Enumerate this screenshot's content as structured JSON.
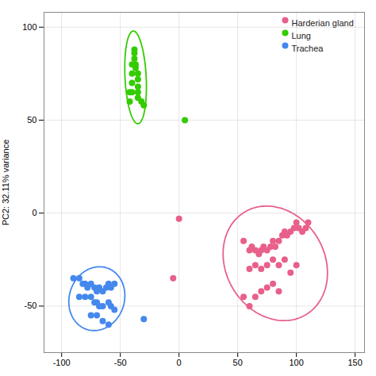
{
  "chart_data": {
    "type": "scatter",
    "ylabel": "PC2: 32.11% variance",
    "xlim": [
      -115,
      158
    ],
    "ylim": [
      -75,
      108
    ],
    "xticks": [
      -100,
      -50,
      0,
      50,
      100,
      150
    ],
    "yticks": [
      -50,
      0,
      50,
      100
    ],
    "grid": true,
    "legend": "upper right",
    "series": [
      {
        "name": "Harderian gland",
        "color": "#e8608a",
        "x": [
          55,
          60,
          62,
          65,
          68,
          70,
          72,
          75,
          78,
          80,
          82,
          85,
          88,
          90,
          92,
          95,
          98,
          100,
          102,
          105,
          108,
          110,
          60,
          65,
          70,
          75,
          80,
          85,
          90,
          95,
          100,
          55,
          60,
          65,
          70,
          75,
          80,
          85,
          0,
          -5
        ],
        "values": [
          -15,
          -20,
          -18,
          -20,
          -22,
          -20,
          -18,
          -20,
          -18,
          -15,
          -18,
          -15,
          -12,
          -10,
          -12,
          -10,
          -8,
          -5,
          -8,
          -10,
          -8,
          -5,
          -30,
          -28,
          -30,
          -28,
          -25,
          -28,
          -25,
          -32,
          -28,
          -45,
          -50,
          -45,
          -42,
          -40,
          -38,
          -42,
          -3,
          -35
        ],
        "ellipse": {
          "cx": 82,
          "cy": -27,
          "width": 90,
          "height": 60,
          "angle": -12
        }
      },
      {
        "name": "Lung",
        "color": "#33cc00",
        "x": [
          -30,
          -32,
          -35,
          -35,
          -35,
          -35,
          -35,
          -37,
          -37,
          -38,
          -38,
          -38,
          -40,
          -40,
          -40,
          -40,
          -42,
          -42,
          5
        ],
        "values": [
          58,
          60,
          62,
          65,
          68,
          72,
          75,
          78,
          80,
          83,
          86,
          88,
          65,
          70,
          75,
          80,
          60,
          65,
          50
        ],
        "ellipse": {
          "cx": -37,
          "cy": 73,
          "width": 18,
          "height": 50,
          "angle": 5
        }
      },
      {
        "name": "Trachea",
        "color": "#4488ee",
        "x": [
          -90,
          -85,
          -82,
          -80,
          -78,
          -75,
          -72,
          -70,
          -68,
          -65,
          -62,
          -60,
          -58,
          -55,
          -85,
          -80,
          -75,
          -72,
          -70,
          -68,
          -65,
          -60,
          -58,
          -55,
          -75,
          -70,
          -65,
          -60,
          -30
        ],
        "values": [
          -35,
          -35,
          -38,
          -38,
          -40,
          -38,
          -40,
          -42,
          -40,
          -42,
          -40,
          -38,
          -40,
          -38,
          -45,
          -45,
          -45,
          -48,
          -48,
          -50,
          -50,
          -48,
          -50,
          -52,
          -55,
          -55,
          -58,
          -60,
          -57
        ],
        "ellipse": {
          "cx": -70,
          "cy": -46,
          "width": 48,
          "height": 34,
          "angle": 8
        }
      }
    ]
  }
}
